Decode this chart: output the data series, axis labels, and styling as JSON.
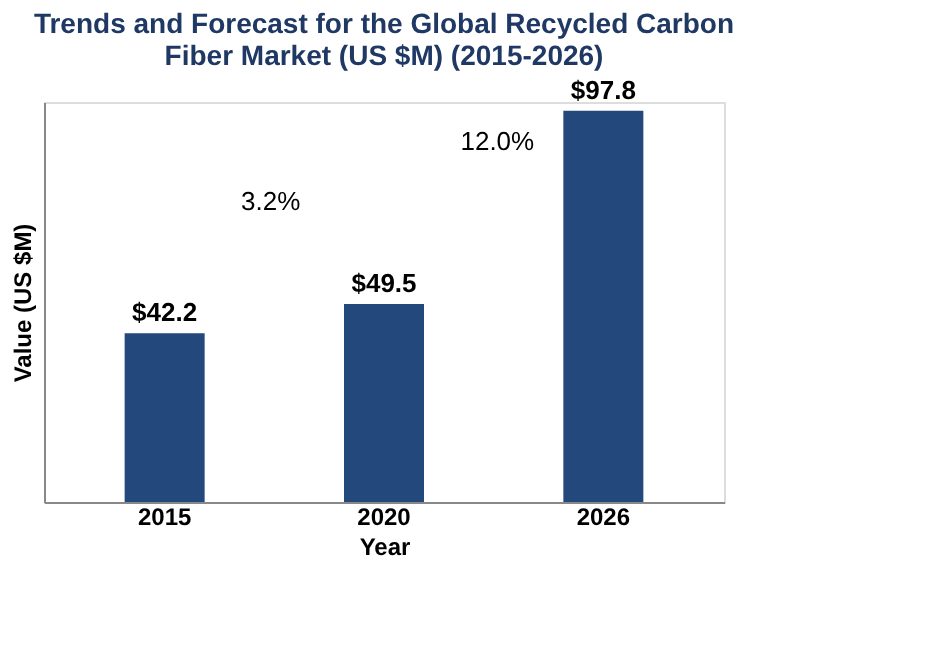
{
  "chart_data": {
    "type": "bar",
    "title": [
      "Trends and Forecast for the Global Recycled Carbon",
      "Fiber Market (US $M) (2015-2026)"
    ],
    "xlabel": "Year",
    "ylabel": "Value (US $M)",
    "categories": [
      "2015",
      "2020",
      "2026"
    ],
    "values": [
      42.2,
      49.5,
      97.8
    ],
    "color": "#23487c",
    "value_labels": [
      "$42.2",
      "$49.5",
      "$97.8"
    ],
    "annotations": [
      "3.2%",
      "12.0%"
    ],
    "grid": false,
    "tick_labels": "x"
  }
}
